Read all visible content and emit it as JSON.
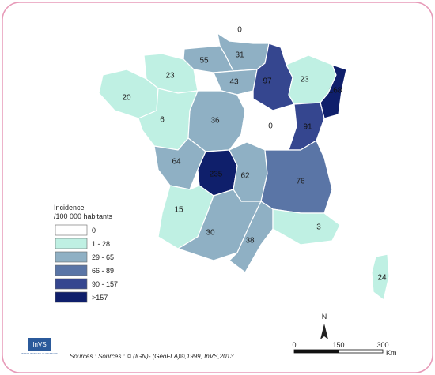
{
  "regions": [
    {
      "value": 0,
      "color": "#ffffff"
    },
    {
      "value": 31,
      "color": "#8fb0c4"
    },
    {
      "value": 55,
      "color": "#8fb0c4"
    },
    {
      "value": 23,
      "color": "#bff0e3"
    },
    {
      "value": 20,
      "color": "#bff0e3"
    },
    {
      "value": 43,
      "color": "#8fb0c4"
    },
    {
      "value": 97,
      "color": "#35468f"
    },
    {
      "value": 23,
      "color": "#bff0e3"
    },
    {
      "value": 168,
      "color": "#0f1f6b"
    },
    {
      "value": 6,
      "color": "#bff0e3"
    },
    {
      "value": 36,
      "color": "#8fb0c4"
    },
    {
      "value": 0,
      "color": "#ffffff"
    },
    {
      "value": 91,
      "color": "#35468f"
    },
    {
      "value": 64,
      "color": "#8fb0c4"
    },
    {
      "value": 235,
      "color": "#0f1f6b"
    },
    {
      "value": 62,
      "color": "#8fb0c4"
    },
    {
      "value": 76,
      "color": "#5a75a6"
    },
    {
      "value": 15,
      "color": "#bff0e3"
    },
    {
      "value": 30,
      "color": "#8fb0c4"
    },
    {
      "value": 38,
      "color": "#8fb0c4"
    },
    {
      "value": 3,
      "color": "#bff0e3"
    },
    {
      "value": 24,
      "color": "#bff0e3"
    }
  ],
  "legend": {
    "title": [
      "Incidence",
      "/100 000 habitants"
    ],
    "items": [
      {
        "label": "0",
        "color": "#ffffff"
      },
      {
        "label": "1 - 28",
        "color": "#bff0e3"
      },
      {
        "label": "29 - 65",
        "color": "#8fb0c4"
      },
      {
        "label": "66 - 89",
        "color": "#5a75a6"
      },
      {
        "label": "90 - 157",
        "color": "#35468f"
      },
      {
        "label": ">157",
        "color": "#0f1f6b"
      }
    ]
  },
  "north": "N",
  "scale": {
    "ticks": [
      0,
      150,
      300
    ],
    "unit": "Km"
  },
  "source": "Sources : Sources : © (IGN)- (GéoFLA)®,1999, InVS,2013",
  "logo": {
    "name": "InVS",
    "subtitle": "INSTITUT DE VEILLE SANITAIRE"
  }
}
